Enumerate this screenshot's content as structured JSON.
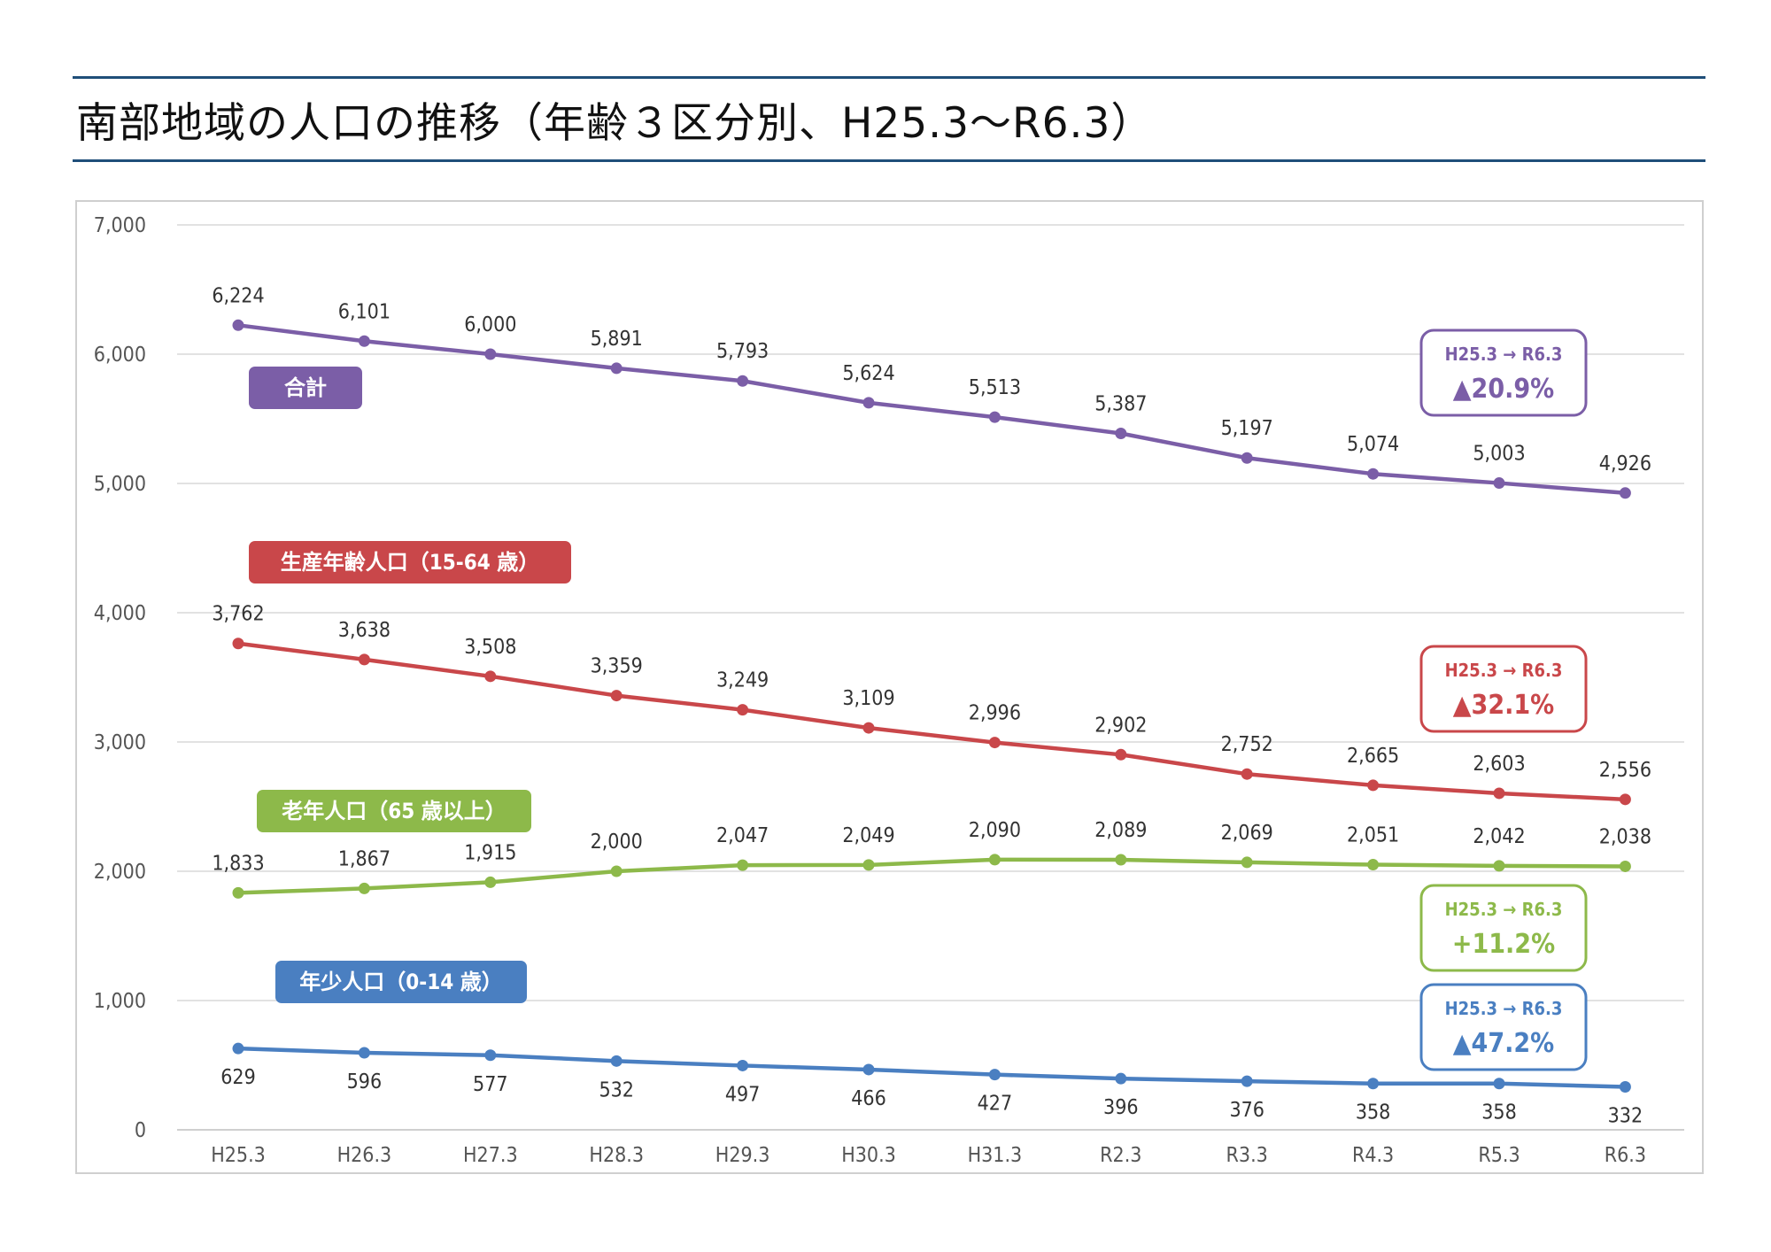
{
  "title": "南部地域の人口の推移（年齢３区分別、H25.3～R6.3）",
  "colors": {
    "total": "#7b5ea7",
    "working": "#c9474a",
    "elderly": "#8db94a",
    "youth": "#4a7fc1",
    "rule": "#1f4e79",
    "grid": "#d9d9d9",
    "axis_text": "#555555"
  },
  "chart_data": {
    "type": "line",
    "categories": [
      "H25.3",
      "H26.3",
      "H27.3",
      "H28.3",
      "H29.3",
      "H30.3",
      "H31.3",
      "R2.3",
      "R3.3",
      "R4.3",
      "R5.3",
      "R6.3"
    ],
    "ylim": [
      0,
      7000
    ],
    "yticks": [
      "0",
      "1,000",
      "2,000",
      "3,000",
      "4,000",
      "5,000",
      "6,000",
      "7,000"
    ],
    "grid": true,
    "series": [
      {
        "key": "total",
        "name": "合計",
        "values": [
          6224,
          6101,
          6000,
          5891,
          5793,
          5624,
          5513,
          5387,
          5197,
          5074,
          5003,
          4926
        ],
        "labels": [
          "6,224",
          "6,101",
          "6,000",
          "5,891",
          "5,793",
          "5,624",
          "5,513",
          "5,387",
          "5,197",
          "5,074",
          "5,003",
          "4,926"
        ],
        "change_period": "H25.3 → R6.3",
        "change": "▲20.9%"
      },
      {
        "key": "working",
        "name": "生産年齢人口（15-64 歳）",
        "values": [
          3762,
          3638,
          3508,
          3359,
          3249,
          3109,
          2996,
          2902,
          2752,
          2665,
          2603,
          2556
        ],
        "labels": [
          "3,762",
          "3,638",
          "3,508",
          "3,359",
          "3,249",
          "3,109",
          "2,996",
          "2,902",
          "2,752",
          "2,665",
          "2,603",
          "2,556"
        ],
        "change_period": "H25.3 → R6.3",
        "change": "▲32.1%"
      },
      {
        "key": "elderly",
        "name": "老年人口（65 歳以上）",
        "values": [
          1833,
          1867,
          1915,
          2000,
          2047,
          2049,
          2090,
          2089,
          2069,
          2051,
          2042,
          2038
        ],
        "labels": [
          "1,833",
          "1,867",
          "1,915",
          "2,000",
          "2,047",
          "2,049",
          "2,090",
          "2,089",
          "2,069",
          "2,051",
          "2,042",
          "2,038"
        ],
        "change_period": "H25.3 → R6.3",
        "change": "+11.2%"
      },
      {
        "key": "youth",
        "name": "年少人口（0-14 歳）",
        "values": [
          629,
          596,
          577,
          532,
          497,
          466,
          427,
          396,
          376,
          358,
          358,
          332
        ],
        "labels": [
          "629",
          "596",
          "577",
          "532",
          "497",
          "466",
          "427",
          "396",
          "376",
          "358",
          "358",
          "332"
        ],
        "change_period": "H25.3 → R6.3",
        "change": "▲47.2%"
      }
    ]
  }
}
